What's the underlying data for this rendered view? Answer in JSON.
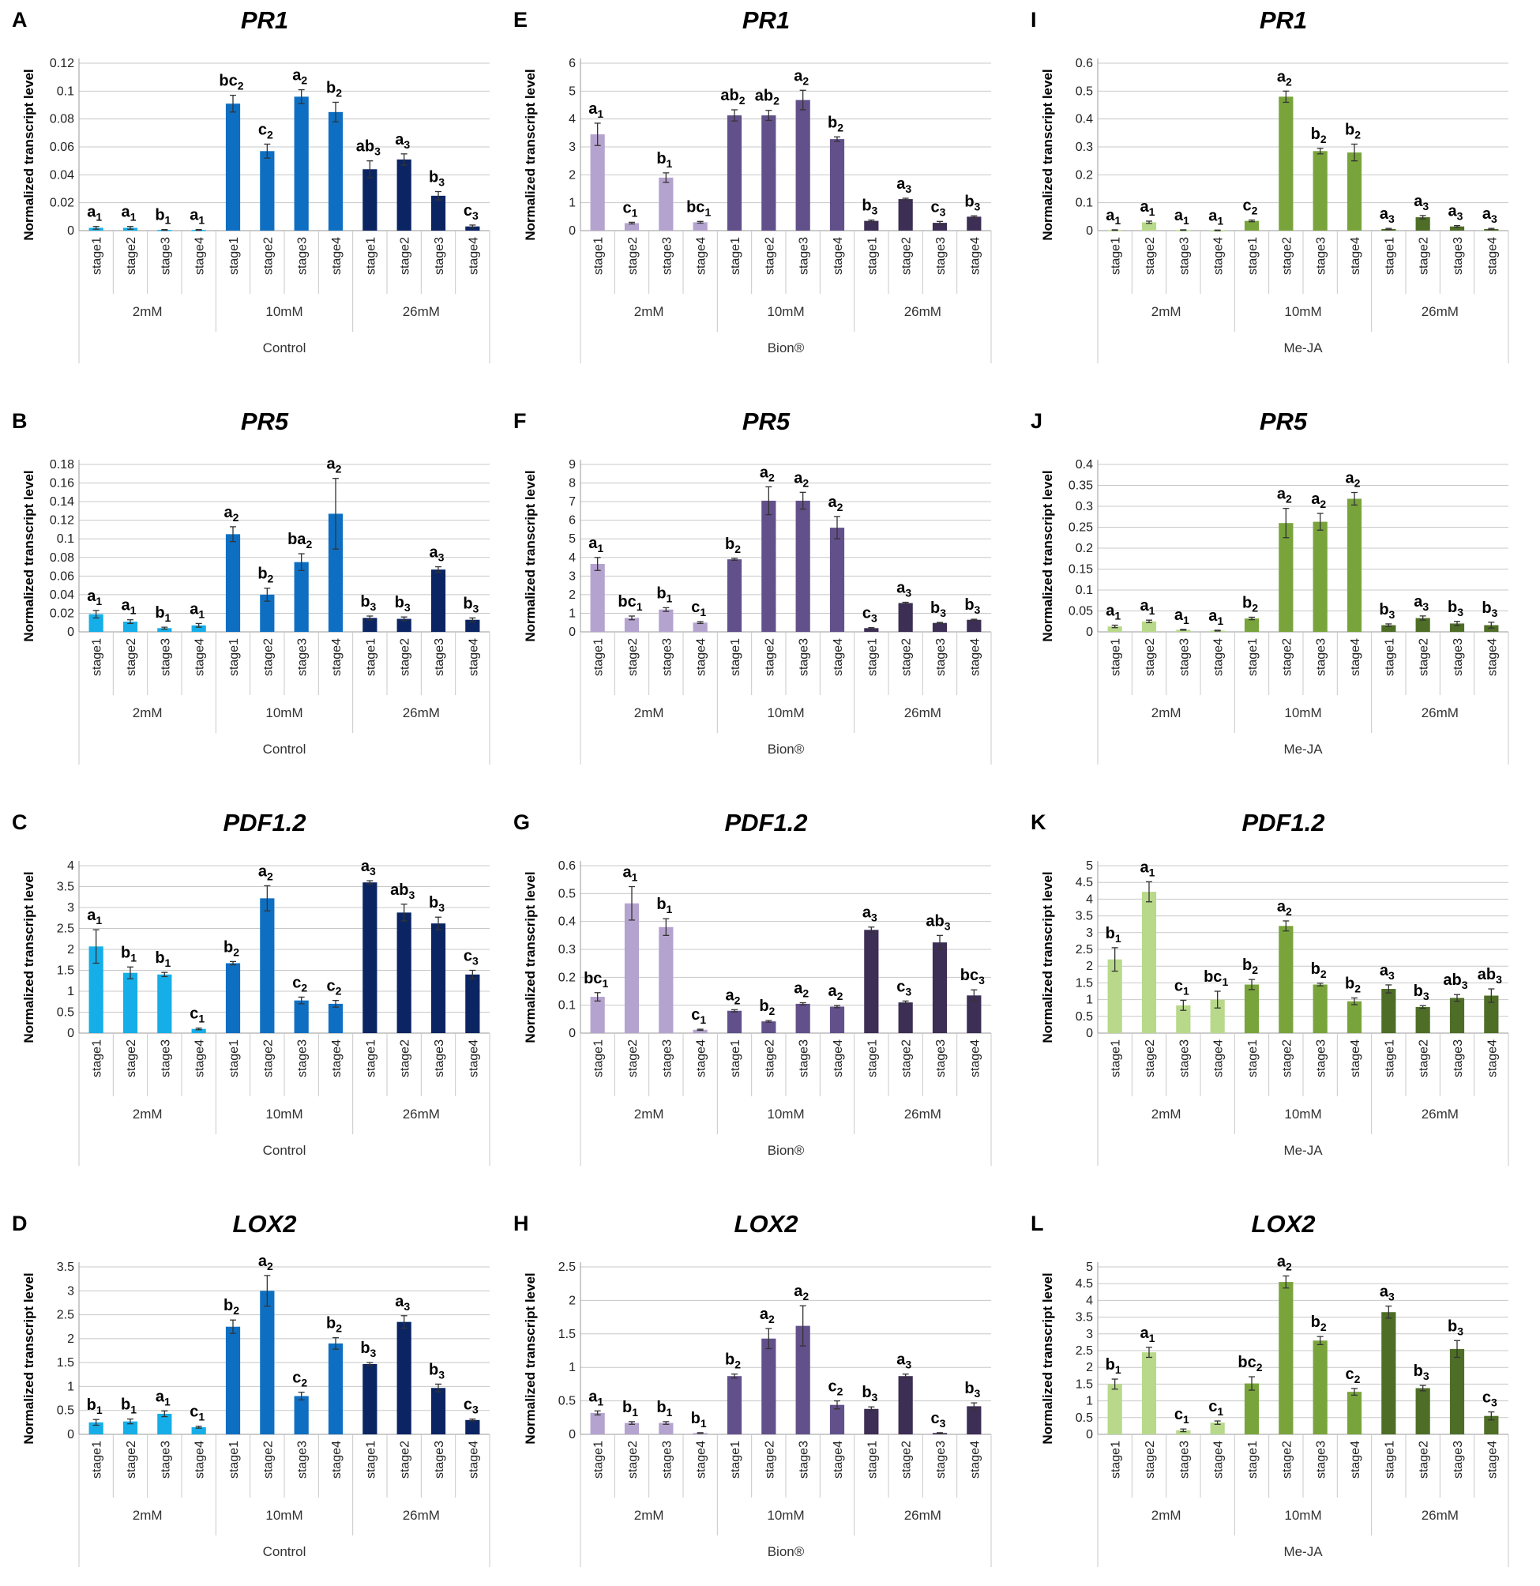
{
  "chart_data": [
    {
      "panel": "A",
      "type": "bar",
      "title": "PR1",
      "treatment": "Control",
      "ylabel": "Normalized transcript level",
      "palette": "control",
      "ylim": [
        0,
        0.12
      ],
      "yticks": [
        "0",
        "0.02",
        "0.04",
        "0.06",
        "0.08",
        "0.1",
        "0.12"
      ],
      "groups": [
        "2mM",
        "10mM",
        "26mM"
      ],
      "categories": [
        "stage1",
        "stage2",
        "stage3",
        "stage4"
      ],
      "values": [
        0.002,
        0.002,
        0.0005,
        0.0005,
        0.091,
        0.057,
        0.096,
        0.085,
        0.044,
        0.051,
        0.025,
        0.003
      ],
      "errors": [
        0.001,
        0.001,
        0.0003,
        0.0003,
        0.006,
        0.005,
        0.005,
        0.007,
        0.006,
        0.004,
        0.003,
        0.001
      ],
      "labels": [
        [
          "a",
          "1"
        ],
        [
          "a",
          "1"
        ],
        [
          "b",
          "1"
        ],
        [
          "a",
          "1"
        ],
        [
          "bc",
          "2"
        ],
        [
          "c",
          "2"
        ],
        [
          "a",
          "2"
        ],
        [
          "b",
          "2"
        ],
        [
          "ab",
          "3"
        ],
        [
          "a",
          "3"
        ],
        [
          "b",
          "3"
        ],
        [
          "c",
          "3"
        ]
      ]
    },
    {
      "panel": "B",
      "type": "bar",
      "title": "PR5",
      "treatment": "Control",
      "ylabel": "Normalized transcript level",
      "palette": "control",
      "ylim": [
        0,
        0.18
      ],
      "yticks": [
        "0",
        "0.02",
        "0.04",
        "0.06",
        "0.08",
        "0.1",
        "0.12",
        "0.14",
        "0.16",
        "0.18"
      ],
      "groups": [
        "2mM",
        "10mM",
        "26mM"
      ],
      "categories": [
        "stage1",
        "stage2",
        "stage3",
        "stage4"
      ],
      "values": [
        0.019,
        0.011,
        0.004,
        0.007,
        0.105,
        0.04,
        0.075,
        0.127,
        0.015,
        0.014,
        0.067,
        0.013
      ],
      "errors": [
        0.004,
        0.002,
        0.001,
        0.002,
        0.008,
        0.007,
        0.009,
        0.038,
        0.002,
        0.002,
        0.003,
        0.002
      ],
      "labels": [
        [
          "a",
          "1"
        ],
        [
          "a",
          "1"
        ],
        [
          "b",
          "1"
        ],
        [
          "a",
          "1"
        ],
        [
          "a",
          "2"
        ],
        [
          "b",
          "2"
        ],
        [
          "ba",
          "2"
        ],
        [
          "a",
          "2"
        ],
        [
          "b",
          "3"
        ],
        [
          "b",
          "3"
        ],
        [
          "a",
          "3"
        ],
        [
          "b",
          "3"
        ]
      ]
    },
    {
      "panel": "C",
      "type": "bar",
      "title": "PDF1.2",
      "treatment": "Control",
      "ylabel": "Normalized transcript level",
      "palette": "control",
      "ylim": [
        0,
        4
      ],
      "yticks": [
        "0",
        "0.5",
        "1",
        "1.5",
        "2",
        "2.5",
        "3",
        "3.5",
        "4"
      ],
      "groups": [
        "2mM",
        "10mM",
        "26mM"
      ],
      "categories": [
        "stage1",
        "stage2",
        "stage3",
        "stage4"
      ],
      "values": [
        2.07,
        1.44,
        1.4,
        0.1,
        1.67,
        3.22,
        0.78,
        0.7,
        3.6,
        2.88,
        2.62,
        1.4
      ],
      "errors": [
        0.4,
        0.14,
        0.05,
        0.02,
        0.04,
        0.3,
        0.08,
        0.08,
        0.04,
        0.2,
        0.15,
        0.1
      ],
      "labels": [
        [
          "a",
          "1"
        ],
        [
          "b",
          "1"
        ],
        [
          "b",
          "1"
        ],
        [
          "c",
          "1"
        ],
        [
          "b",
          "2"
        ],
        [
          "a",
          "2"
        ],
        [
          "c",
          "2"
        ],
        [
          "c",
          "2"
        ],
        [
          "a",
          "3"
        ],
        [
          "ab",
          "3"
        ],
        [
          "b",
          "3"
        ],
        [
          "c",
          "3"
        ]
      ]
    },
    {
      "panel": "D",
      "type": "bar",
      "title": "LOX2",
      "treatment": "Control",
      "ylabel": "Normalized transcript level",
      "palette": "control",
      "ylim": [
        0,
        3.5
      ],
      "yticks": [
        "0",
        "0.5",
        "1",
        "1.5",
        "2",
        "2.5",
        "3",
        "3.5"
      ],
      "groups": [
        "2mM",
        "10mM",
        "26mM"
      ],
      "categories": [
        "stage1",
        "stage2",
        "stage3",
        "stage4"
      ],
      "values": [
        0.25,
        0.27,
        0.43,
        0.15,
        2.25,
        3.0,
        0.8,
        1.9,
        1.47,
        2.35,
        0.97,
        0.3
      ],
      "errors": [
        0.06,
        0.05,
        0.06,
        0.02,
        0.14,
        0.32,
        0.08,
        0.12,
        0.03,
        0.13,
        0.08,
        0.02
      ],
      "labels": [
        [
          "b",
          "1"
        ],
        [
          "b",
          "1"
        ],
        [
          "a",
          "1"
        ],
        [
          "c",
          "1"
        ],
        [
          "b",
          "2"
        ],
        [
          "a",
          "2"
        ],
        [
          "c",
          "2"
        ],
        [
          "b",
          "2"
        ],
        [
          "b",
          "3"
        ],
        [
          "a",
          "3"
        ],
        [
          "b",
          "3"
        ],
        [
          "c",
          "3"
        ]
      ]
    },
    {
      "panel": "E",
      "type": "bar",
      "title": "PR1",
      "treatment": "Bion®",
      "ylabel": "Normalized transcript level",
      "palette": "bion",
      "ylim": [
        0,
        6
      ],
      "yticks": [
        "0",
        "1",
        "2",
        "3",
        "4",
        "5",
        "6"
      ],
      "groups": [
        "2mM",
        "10mM",
        "26mM"
      ],
      "categories": [
        "stage1",
        "stage2",
        "stage3",
        "stage4"
      ],
      "values": [
        3.45,
        0.27,
        1.9,
        0.3,
        4.13,
        4.13,
        4.68,
        3.28,
        0.35,
        1.13,
        0.28,
        0.5
      ],
      "errors": [
        0.4,
        0.03,
        0.17,
        0.03,
        0.2,
        0.18,
        0.35,
        0.08,
        0.03,
        0.03,
        0.05,
        0.03
      ],
      "labels": [
        [
          "a",
          "1"
        ],
        [
          "c",
          "1"
        ],
        [
          "b",
          "1"
        ],
        [
          "bc",
          "1"
        ],
        [
          "ab",
          "2"
        ],
        [
          "ab",
          "2"
        ],
        [
          "a",
          "2"
        ],
        [
          "b",
          "2"
        ],
        [
          "b",
          "3"
        ],
        [
          "a",
          "3"
        ],
        [
          "c",
          "3"
        ],
        [
          "b",
          "3"
        ]
      ]
    },
    {
      "panel": "F",
      "type": "bar",
      "title": "PR5",
      "treatment": "Bion®",
      "ylabel": "Normalized transcript level",
      "palette": "bion",
      "ylim": [
        0,
        9
      ],
      "yticks": [
        "0",
        "1",
        "2",
        "3",
        "4",
        "5",
        "6",
        "7",
        "8",
        "9"
      ],
      "groups": [
        "2mM",
        "10mM",
        "26mM"
      ],
      "categories": [
        "stage1",
        "stage2",
        "stage3",
        "stage4"
      ],
      "values": [
        3.65,
        0.75,
        1.2,
        0.5,
        3.9,
        7.05,
        7.05,
        5.6,
        0.2,
        1.55,
        0.48,
        0.65
      ],
      "errors": [
        0.35,
        0.1,
        0.1,
        0.05,
        0.05,
        0.75,
        0.45,
        0.6,
        0.03,
        0.04,
        0.03,
        0.03
      ],
      "labels": [
        [
          "a",
          "1"
        ],
        [
          "bc",
          "1"
        ],
        [
          "b",
          "1"
        ],
        [
          "c",
          "1"
        ],
        [
          "b",
          "2"
        ],
        [
          "a",
          "2"
        ],
        [
          "a",
          "2"
        ],
        [
          "a",
          "2"
        ],
        [
          "c",
          "3"
        ],
        [
          "a",
          "3"
        ],
        [
          "b",
          "3"
        ],
        [
          "b",
          "3"
        ]
      ]
    },
    {
      "panel": "G",
      "type": "bar",
      "title": "PDF1.2",
      "treatment": "Bion®",
      "ylabel": "Normalized transcript level",
      "palette": "bion",
      "ylim": [
        0,
        0.6
      ],
      "yticks": [
        "0",
        "0.1",
        "0.2",
        "0.3",
        "0.4",
        "0.5",
        "0.6"
      ],
      "groups": [
        "2mM",
        "10mM",
        "26mM"
      ],
      "categories": [
        "stage1",
        "stage2",
        "stage3",
        "stage4"
      ],
      "values": [
        0.13,
        0.465,
        0.38,
        0.012,
        0.08,
        0.042,
        0.105,
        0.095,
        0.37,
        0.11,
        0.325,
        0.135
      ],
      "errors": [
        0.015,
        0.06,
        0.03,
        0.002,
        0.004,
        0.003,
        0.004,
        0.004,
        0.01,
        0.005,
        0.025,
        0.02
      ],
      "labels": [
        [
          "bc",
          "1"
        ],
        [
          "a",
          "1"
        ],
        [
          "b",
          "1"
        ],
        [
          "c",
          "1"
        ],
        [
          "a",
          "2"
        ],
        [
          "b",
          "2"
        ],
        [
          "a",
          "2"
        ],
        [
          "a",
          "2"
        ],
        [
          "a",
          "3"
        ],
        [
          "c",
          "3"
        ],
        [
          "ab",
          "3"
        ],
        [
          "bc",
          "3"
        ]
      ]
    },
    {
      "panel": "H",
      "type": "bar",
      "title": "LOX2",
      "treatment": "Bion®",
      "ylabel": "Normalized transcript level",
      "palette": "bion",
      "ylim": [
        0,
        2.5
      ],
      "yticks": [
        "0",
        "0.5",
        "1",
        "1.5",
        "2",
        "2.5"
      ],
      "groups": [
        "2mM",
        "10mM",
        "26mM"
      ],
      "categories": [
        "stage1",
        "stage2",
        "stage3",
        "stage4"
      ],
      "values": [
        0.32,
        0.17,
        0.17,
        0.02,
        0.87,
        1.43,
        1.62,
        0.44,
        0.38,
        0.87,
        0.02,
        0.42
      ],
      "errors": [
        0.03,
        0.02,
        0.02,
        0.005,
        0.03,
        0.15,
        0.3,
        0.06,
        0.03,
        0.03,
        0.005,
        0.05
      ],
      "labels": [
        [
          "a",
          "1"
        ],
        [
          "b",
          "1"
        ],
        [
          "b",
          "1"
        ],
        [
          "b",
          "1"
        ],
        [
          "b",
          "2"
        ],
        [
          "a",
          "2"
        ],
        [
          "a",
          "2"
        ],
        [
          "c",
          "2"
        ],
        [
          "b",
          "3"
        ],
        [
          "a",
          "3"
        ],
        [
          "c",
          "3"
        ],
        [
          "b",
          "3"
        ]
      ]
    },
    {
      "panel": "I",
      "type": "bar",
      "title": "PR1",
      "treatment": "Me-JA",
      "ylabel": "Normalized transcript level",
      "palette": "meja",
      "ylim": [
        0,
        0.6
      ],
      "yticks": [
        "0",
        "0.1",
        "0.2",
        "0.3",
        "0.4",
        "0.5",
        "0.6"
      ],
      "groups": [
        "2mM",
        "10mM",
        "26mM"
      ],
      "categories": [
        "stage1",
        "stage2",
        "stage3",
        "stage4"
      ],
      "values": [
        0.002,
        0.03,
        0.002,
        0.001,
        0.035,
        0.48,
        0.285,
        0.28,
        0.006,
        0.048,
        0.015,
        0.006
      ],
      "errors": [
        0.001,
        0.004,
        0.001,
        0.001,
        0.003,
        0.02,
        0.01,
        0.03,
        0.002,
        0.006,
        0.003,
        0.002
      ],
      "labels": [
        [
          "a",
          "1"
        ],
        [
          "a",
          "1"
        ],
        [
          "a",
          "1"
        ],
        [
          "a",
          "1"
        ],
        [
          "c",
          "2"
        ],
        [
          "a",
          "2"
        ],
        [
          "b",
          "2"
        ],
        [
          "b",
          "2"
        ],
        [
          "a",
          "3"
        ],
        [
          "a",
          "3"
        ],
        [
          "a",
          "3"
        ],
        [
          "a",
          "3"
        ]
      ]
    },
    {
      "panel": "J",
      "type": "bar",
      "title": "PR5",
      "treatment": "Me-JA",
      "ylabel": "Normalized transcript level",
      "palette": "meja",
      "ylim": [
        0,
        0.4
      ],
      "yticks": [
        "0",
        "0.05",
        "0.1",
        "0.15",
        "0.2",
        "0.25",
        "0.3",
        "0.35",
        "0.4"
      ],
      "groups": [
        "2mM",
        "10mM",
        "26mM"
      ],
      "categories": [
        "stage1",
        "stage2",
        "stage3",
        "stage4"
      ],
      "values": [
        0.013,
        0.025,
        0.005,
        0.003,
        0.032,
        0.26,
        0.263,
        0.318,
        0.016,
        0.033,
        0.02,
        0.016
      ],
      "errors": [
        0.003,
        0.003,
        0.001,
        0.001,
        0.003,
        0.035,
        0.02,
        0.015,
        0.003,
        0.005,
        0.005,
        0.007
      ],
      "labels": [
        [
          "a",
          "1"
        ],
        [
          "a",
          "1"
        ],
        [
          "a",
          "1"
        ],
        [
          "a",
          "1"
        ],
        [
          "b",
          "2"
        ],
        [
          "a",
          "2"
        ],
        [
          "a",
          "2"
        ],
        [
          "a",
          "2"
        ],
        [
          "b",
          "3"
        ],
        [
          "a",
          "3"
        ],
        [
          "b",
          "3"
        ],
        [
          "b",
          "3"
        ]
      ]
    },
    {
      "panel": "K",
      "type": "bar",
      "title": "PDF1.2",
      "treatment": "Me-JA",
      "ylabel": "Normalized transcript level",
      "palette": "meja",
      "ylim": [
        0,
        5
      ],
      "yticks": [
        "0",
        "0.5",
        "1",
        "1.5",
        "2",
        "2.5",
        "3",
        "3.5",
        "4",
        "4.5",
        "5"
      ],
      "groups": [
        "2mM",
        "10mM",
        "26mM"
      ],
      "categories": [
        "stage1",
        "stage2",
        "stage3",
        "stage4"
      ],
      "values": [
        2.2,
        4.22,
        0.83,
        1.0,
        1.45,
        3.2,
        1.45,
        0.95,
        1.32,
        0.78,
        1.05,
        1.12
      ],
      "errors": [
        0.35,
        0.3,
        0.15,
        0.25,
        0.15,
        0.15,
        0.04,
        0.1,
        0.12,
        0.04,
        0.1,
        0.2
      ],
      "labels": [
        [
          "b",
          "1"
        ],
        [
          "a",
          "1"
        ],
        [
          "c",
          "1"
        ],
        [
          "bc",
          "1"
        ],
        [
          "b",
          "2"
        ],
        [
          "a",
          "2"
        ],
        [
          "b",
          "2"
        ],
        [
          "b",
          "2"
        ],
        [
          "a",
          "3"
        ],
        [
          "b",
          "3"
        ],
        [
          "ab",
          "3"
        ],
        [
          "ab",
          "3"
        ]
      ]
    },
    {
      "panel": "L",
      "type": "bar",
      "title": "LOX2",
      "treatment": "Me-JA",
      "ylabel": "Normalized transcript level",
      "palette": "meja",
      "ylim": [
        0,
        5
      ],
      "yticks": [
        "0",
        "0.5",
        "1",
        "1.5",
        "2",
        "2.5",
        "3",
        "3.5",
        "4",
        "4.5",
        "5"
      ],
      "groups": [
        "2mM",
        "10mM",
        "26mM"
      ],
      "categories": [
        "stage1",
        "stage2",
        "stage3",
        "stage4"
      ],
      "values": [
        1.5,
        2.45,
        0.12,
        0.35,
        1.52,
        4.55,
        2.8,
        1.27,
        3.65,
        1.38,
        2.55,
        0.55
      ],
      "errors": [
        0.15,
        0.15,
        0.04,
        0.05,
        0.2,
        0.18,
        0.12,
        0.1,
        0.18,
        0.08,
        0.25,
        0.12
      ],
      "labels": [
        [
          "b",
          "1"
        ],
        [
          "a",
          "1"
        ],
        [
          "c",
          "1"
        ],
        [
          "c",
          "1"
        ],
        [
          "bc",
          "2"
        ],
        [
          "a",
          "2"
        ],
        [
          "b",
          "2"
        ],
        [
          "c",
          "2"
        ],
        [
          "a",
          "3"
        ],
        [
          "b",
          "3"
        ],
        [
          "b",
          "3"
        ],
        [
          "c",
          "3"
        ]
      ]
    }
  ],
  "colors": {
    "control": [
      "#16aee8",
      "#0e6fc2",
      "#0b2563"
    ],
    "bion": [
      "#b5a3cf",
      "#62508b",
      "#3d2e55"
    ],
    "meja": [
      "#b8d98a",
      "#79a43c",
      "#4e6e27"
    ],
    "error_bar": "#333333",
    "gridline": "#c8c8c8",
    "axis": "#9a9a9a"
  }
}
